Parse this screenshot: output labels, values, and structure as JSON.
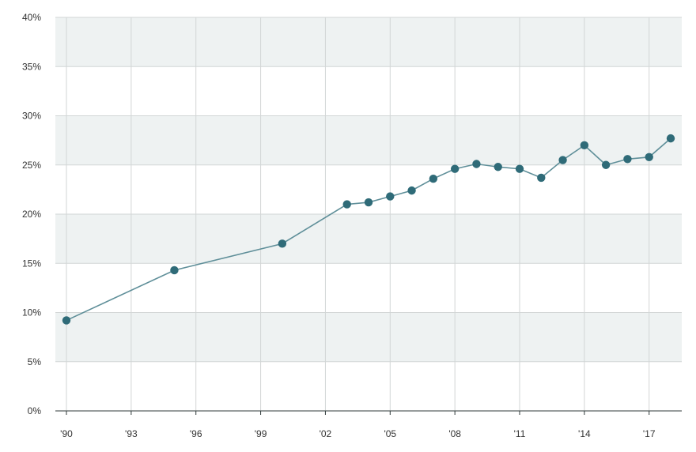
{
  "colors": {
    "band": "#eef2f2",
    "line": "#5f8f99",
    "point": "#2f6b78",
    "grid": "#d2d6d6"
  },
  "chart_data": {
    "type": "line",
    "title": "",
    "xlabel": "",
    "ylabel": "",
    "xlim": [
      1990,
      2018
    ],
    "ylim": [
      0,
      40
    ],
    "grid": true,
    "legend": "none",
    "x_ticks": [
      {
        "value": 1990,
        "label": "'90"
      },
      {
        "value": 1993,
        "label": "'93"
      },
      {
        "value": 1996,
        "label": "'96"
      },
      {
        "value": 1999,
        "label": "'99"
      },
      {
        "value": 2002,
        "label": "'02"
      },
      {
        "value": 2005,
        "label": "'05"
      },
      {
        "value": 2008,
        "label": "'08"
      },
      {
        "value": 2011,
        "label": "'11"
      },
      {
        "value": 2014,
        "label": "'14"
      },
      {
        "value": 2017,
        "label": "'17"
      }
    ],
    "y_ticks": [
      {
        "value": 0,
        "label": "0%"
      },
      {
        "value": 5,
        "label": "5%"
      },
      {
        "value": 10,
        "label": "10%"
      },
      {
        "value": 15,
        "label": "15%"
      },
      {
        "value": 20,
        "label": "20%"
      },
      {
        "value": 25,
        "label": "25%"
      },
      {
        "value": 30,
        "label": "30%"
      },
      {
        "value": 35,
        "label": "35%"
      },
      {
        "value": 40,
        "label": "40%"
      }
    ],
    "series": [
      {
        "x": [
          1990,
          1995,
          2000,
          2003,
          2004,
          2005,
          2006,
          2007,
          2008,
          2009,
          2010,
          2011,
          2012,
          2013,
          2014,
          2015,
          2016,
          2017,
          2018
        ],
        "values": [
          9.2,
          14.3,
          17.0,
          21.0,
          21.2,
          21.8,
          22.4,
          23.6,
          24.6,
          25.1,
          24.8,
          24.6,
          23.7,
          25.5,
          27.0,
          25.0,
          25.6,
          25.8,
          27.7
        ]
      }
    ]
  }
}
